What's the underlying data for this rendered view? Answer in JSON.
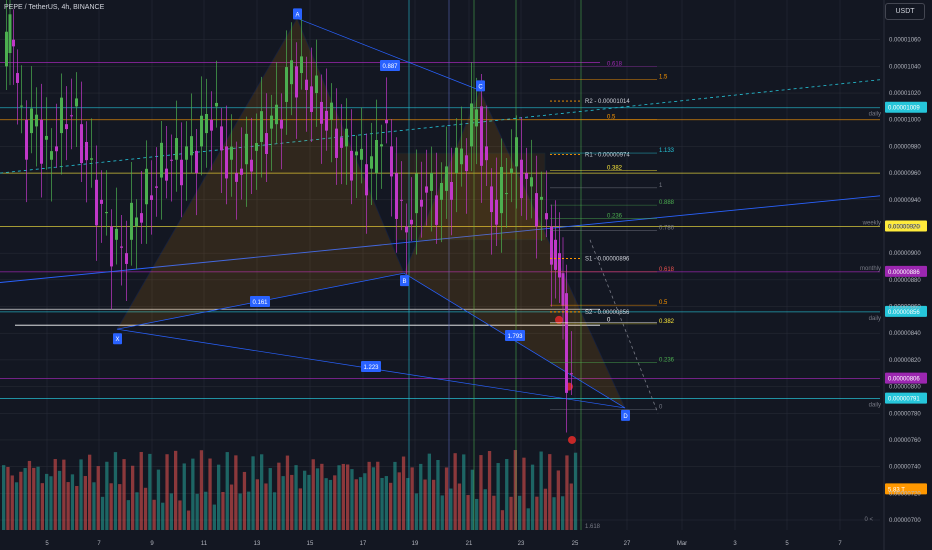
{
  "header": {
    "title": "PEPE / TetherUS, 4h, BINANCE"
  },
  "currency_button": "USDT",
  "colors": {
    "background": "#131722",
    "grid": "#2a2e39",
    "up": "#26a69a",
    "down": "#ef5350",
    "purple": "#9c27b0",
    "orange": "#ff9800",
    "yellow": "#ffeb3b",
    "teal": "#26c6da",
    "blue": "#2962ff",
    "green_level": "#4caf50"
  },
  "chart_data": {
    "type": "candlestick",
    "symbol": "PEPE / TetherUS",
    "interval": "4h",
    "exchange": "BINANCE",
    "price_axis": {
      "ylim": [
        6.9e-06,
        1.08e-05
      ],
      "ticks": [
        "0.00001060",
        "0.00001040",
        "0.00001020",
        "0.00001000",
        "0.00000980",
        "0.00000960",
        "0.00000940",
        "0.00000920",
        "0.00000900",
        "0.00000880",
        "0.00000860",
        "0.00000840",
        "0.00000820",
        "0.00000800",
        "0.00000780",
        "0.00000760",
        "0.00000740",
        "0.00000720",
        "0.00000700"
      ]
    },
    "time_axis": {
      "ticks": [
        "5",
        "7",
        "9",
        "11",
        "13",
        "15",
        "17",
        "19",
        "21",
        "23",
        "25",
        "27",
        "Mar",
        "3",
        "5",
        "7"
      ]
    },
    "axis_labels": [
      {
        "text": "0.00001009",
        "color": "#26c6da",
        "price": 1.009e-05,
        "side": "daily"
      },
      {
        "text": "0.00000920",
        "color": "#ffeb3b",
        "price": 9.2e-06,
        "side": "weekly"
      },
      {
        "text": "0.00000886",
        "color": "#9c27b0",
        "price": 8.86e-06,
        "side": "monthly"
      },
      {
        "text": "0.00000856",
        "color": "#26c6da",
        "price": 8.56e-06,
        "side": "daily"
      },
      {
        "text": "0.00000806",
        "color": "#9c27b0",
        "price": 8.06e-06,
        "side": ""
      },
      {
        "text": "0.00000791",
        "color": "#26c6da",
        "price": 7.91e-06,
        "side": "daily"
      },
      {
        "text": "5.83 T",
        "color": "#ff9800",
        "price": 7.23e-06,
        "side": ""
      }
    ],
    "side_tags": [
      "daily",
      "weekly",
      "monthly",
      "daily",
      "daily"
    ],
    "pivots": [
      {
        "label": "R2 - 0.00001014",
        "price": 1.014e-05,
        "color": "#ff9800"
      },
      {
        "label": "R1 - 0.00000974",
        "price": 9.74e-06,
        "color": "#ff9800"
      },
      {
        "label": "S1 - 0.00000896",
        "price": 8.96e-06,
        "color": "#ff9800"
      },
      {
        "label": "S2 - 0.00000856",
        "price": 8.56e-06,
        "color": "#ff9800"
      }
    ],
    "fib_levels": [
      {
        "label": "0.618",
        "price": 1.04e-05,
        "color": "#9c27b0"
      },
      {
        "label": "1.5",
        "price": 1.03e-05,
        "color": "#ff9800"
      },
      {
        "label": "0.5",
        "price": 1e-05,
        "color": "#ff9800"
      },
      {
        "label": "1.133",
        "price": 9.75e-06,
        "color": "#26c6da"
      },
      {
        "label": "0.382",
        "price": 9.62e-06,
        "color": "#ffeb3b"
      },
      {
        "label": "1",
        "price": 9.49e-06,
        "color": "#787b86"
      },
      {
        "label": "0.888",
        "price": 9.36e-06,
        "color": "#4caf50"
      },
      {
        "label": "0.786",
        "price": 9.17e-06,
        "color": "#787b86"
      },
      {
        "label": "0.236",
        "price": 9.26e-06,
        "color": "#4caf50"
      },
      {
        "label": "0.618",
        "price": 8.86e-06,
        "color": "#ef5350"
      },
      {
        "label": "0",
        "price": 8.48e-06,
        "color": "#ffffff"
      },
      {
        "label": "0.5",
        "price": 8.61e-06,
        "color": "#ff9800"
      },
      {
        "label": "0.382",
        "price": 8.47e-06,
        "color": "#ffeb3b"
      },
      {
        "label": "0.236",
        "price": 8.18e-06,
        "color": "#4caf50"
      },
      {
        "label": "0",
        "price": 7.83e-06,
        "color": "#787b86"
      }
    ],
    "harmonic_points": [
      {
        "label": "X",
        "price": 8.43e-06
      },
      {
        "label": "A",
        "price": 1.076e-05
      },
      {
        "label": "B",
        "price": 8.85e-06
      },
      {
        "label": "C",
        "price": 1.022e-05
      },
      {
        "label": "D",
        "price": 7.84e-06
      }
    ],
    "ratios": [
      {
        "label": "0.887"
      },
      {
        "label": "0.161"
      },
      {
        "label": "1.793"
      },
      {
        "label": "1.223"
      }
    ],
    "volume_label": "5.83 T",
    "footer": {
      "left": "1.618",
      "right": "0 <"
    }
  }
}
